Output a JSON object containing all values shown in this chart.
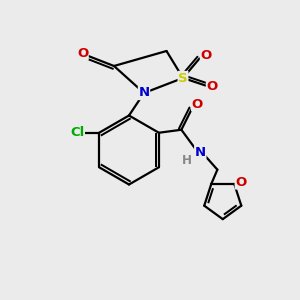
{
  "background_color": "#ebebeb",
  "bond_color": "#000000",
  "bond_width": 1.6,
  "atom_colors": {
    "S": "#cccc00",
    "N": "#0000cc",
    "O": "#cc0000",
    "Cl": "#00aa00",
    "H": "#888888",
    "C": "#000000"
  },
  "fontsize": 9.5,
  "figsize": [
    3.0,
    3.0
  ],
  "dpi": 100
}
